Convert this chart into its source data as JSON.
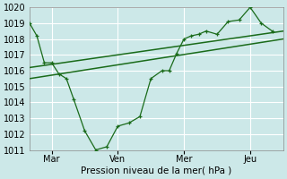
{
  "xlabel": "Pression niveau de la mer( hPa )",
  "bg_color": "#cce8e8",
  "grid_color": "#ffffff",
  "line_color": "#1a6b1a",
  "ylim": [
    1011,
    1020
  ],
  "yticks": [
    1011,
    1012,
    1013,
    1014,
    1015,
    1016,
    1017,
    1018,
    1019,
    1020
  ],
  "day_labels": [
    "Mar",
    "Ven",
    "Mer",
    "Jeu"
  ],
  "day_positions": [
    1.0,
    4.0,
    7.0,
    10.0
  ],
  "xlim": [
    0,
    11.5
  ],
  "series1_x": [
    0.0,
    0.33,
    0.67,
    1.0,
    1.33,
    1.67,
    2.0,
    2.5,
    3.0,
    3.5,
    4.0,
    4.5,
    5.0,
    5.5,
    6.0,
    6.33,
    6.67,
    7.0,
    7.33,
    7.67,
    8.0,
    8.5,
    9.0,
    9.5,
    10.0,
    10.5,
    11.0
  ],
  "series1_y": [
    1019.0,
    1018.2,
    1016.5,
    1016.5,
    1015.8,
    1015.5,
    1014.2,
    1012.2,
    1011.0,
    1011.2,
    1012.5,
    1012.7,
    1013.1,
    1015.5,
    1016.0,
    1016.0,
    1017.1,
    1018.0,
    1018.2,
    1018.3,
    1018.5,
    1018.3,
    1019.1,
    1019.2,
    1020.0,
    1019.0,
    1018.5
  ],
  "series2_x": [
    0.0,
    11.5
  ],
  "series2_y": [
    1016.2,
    1018.5
  ],
  "series3_x": [
    0.0,
    11.5
  ],
  "series3_y": [
    1015.5,
    1018.0
  ],
  "vline_positions": [
    1.0,
    4.0,
    7.0,
    10.0
  ]
}
